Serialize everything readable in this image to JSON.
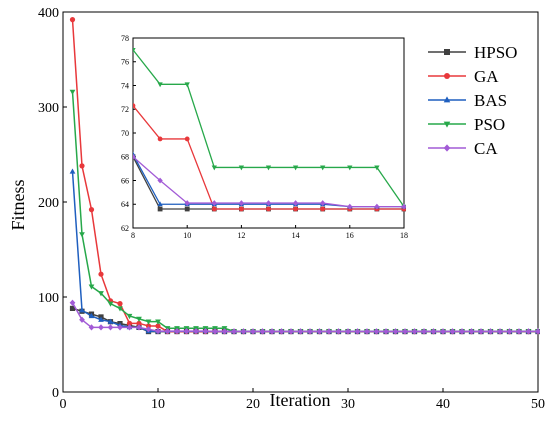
{
  "chart_data": {
    "type": "line",
    "title": "",
    "xlabel": "Iteration",
    "ylabel": "Fitness",
    "xlim": [
      0,
      50
    ],
    "ylim": [
      0,
      400
    ],
    "xticks": [
      0,
      10,
      20,
      30,
      40,
      50
    ],
    "yticks": [
      0,
      100,
      200,
      300,
      400
    ],
    "grid": false,
    "legend_position": "top-right",
    "series": [
      {
        "name": "HPSO",
        "color": "#404040",
        "marker": "square",
        "x": [
          1,
          2,
          3,
          4,
          5,
          6,
          7,
          8,
          9,
          10,
          11,
          12,
          13,
          14,
          15,
          16,
          17,
          18,
          19,
          20,
          21,
          22,
          23,
          24,
          25,
          26,
          27,
          28,
          29,
          30,
          31,
          32,
          33,
          34,
          35,
          36,
          37,
          38,
          39,
          40,
          41,
          42,
          43,
          44,
          45,
          46,
          47,
          48,
          49,
          50
        ],
        "y": [
          88,
          85,
          82,
          79,
          74,
          72,
          70,
          68,
          63.6,
          63.6,
          63.6,
          63.6,
          63.6,
          63.6,
          63.6,
          63.6,
          63.6,
          63.6,
          63.6,
          63.6,
          63.6,
          63.6,
          63.6,
          63.6,
          63.6,
          63.6,
          63.6,
          63.6,
          63.6,
          63.6,
          63.6,
          63.6,
          63.6,
          63.6,
          63.6,
          63.6,
          63.6,
          63.6,
          63.6,
          63.6,
          63.6,
          63.6,
          63.6,
          63.6,
          63.6,
          63.6,
          63.6,
          63.6,
          63.6,
          63.6
        ]
      },
      {
        "name": "GA",
        "color": "#e8383b",
        "marker": "circle",
        "x": [
          1,
          2,
          3,
          4,
          5,
          6,
          7,
          8,
          9,
          10,
          11,
          12,
          13,
          14,
          15,
          16,
          17,
          18,
          19,
          20,
          21,
          22,
          23,
          24,
          25,
          26,
          27,
          28,
          29,
          30,
          31,
          32,
          33,
          34,
          35,
          36,
          37,
          38,
          39,
          40,
          41,
          42,
          43,
          44,
          45,
          46,
          47,
          48,
          49,
          50
        ],
        "y": [
          392,
          238,
          192,
          124,
          96,
          93,
          72.3,
          72.3,
          69.5,
          69.5,
          63.6,
          63.6,
          63.6,
          63.6,
          63.6,
          63.6,
          63.6,
          63.6,
          63.6,
          63.6,
          63.6,
          63.6,
          63.6,
          63.6,
          63.6,
          63.6,
          63.6,
          63.6,
          63.6,
          63.6,
          63.6,
          63.6,
          63.6,
          63.6,
          63.6,
          63.6,
          63.6,
          63.6,
          63.6,
          63.6,
          63.6,
          63.6,
          63.6,
          63.6,
          63.6,
          63.6,
          63.6,
          63.6,
          63.6,
          63.6
        ]
      },
      {
        "name": "BAS",
        "color": "#1f5fbf",
        "marker": "triangle-up",
        "x": [
          1,
          2,
          3,
          4,
          5,
          6,
          7,
          8,
          9,
          10,
          11,
          12,
          13,
          14,
          15,
          16,
          17,
          18,
          19,
          20,
          21,
          22,
          23,
          24,
          25,
          26,
          27,
          28,
          29,
          30,
          31,
          32,
          33,
          34,
          35,
          36,
          37,
          38,
          39,
          40,
          41,
          42,
          43,
          44,
          45,
          46,
          47,
          48,
          49,
          50
        ],
        "y": [
          232,
          86,
          80,
          76,
          74,
          70,
          68.2,
          68.2,
          64,
          64,
          64,
          64,
          64,
          64,
          64,
          63.8,
          63.8,
          63.8,
          63.8,
          63.8,
          63.8,
          63.8,
          63.8,
          63.8,
          63.8,
          63.8,
          63.8,
          63.8,
          63.8,
          63.8,
          63.8,
          63.8,
          63.8,
          63.8,
          63.8,
          63.8,
          63.8,
          63.8,
          63.8,
          63.8,
          63.8,
          63.8,
          63.8,
          63.8,
          63.8,
          63.8,
          63.8,
          63.8,
          63.8,
          63.8
        ]
      },
      {
        "name": "PSO",
        "color": "#27a84a",
        "marker": "triangle-down",
        "x": [
          1,
          2,
          3,
          4,
          5,
          6,
          7,
          8,
          9,
          10,
          11,
          12,
          13,
          14,
          15,
          16,
          17,
          18,
          19,
          20,
          21,
          22,
          23,
          24,
          25,
          26,
          27,
          28,
          29,
          30,
          31,
          32,
          33,
          34,
          35,
          36,
          37,
          38,
          39,
          40,
          41,
          42,
          43,
          44,
          45,
          46,
          47,
          48,
          49,
          50
        ],
        "y": [
          316,
          166,
          111,
          104,
          93,
          88,
          80,
          77,
          74.1,
          74.1,
          67.1,
          67.1,
          67.1,
          67.1,
          67.1,
          67.1,
          67.1,
          63.8,
          63.8,
          63.8,
          63.8,
          63.8,
          63.8,
          63.8,
          63.8,
          63.8,
          63.8,
          63.8,
          63.8,
          63.8,
          63.8,
          63.8,
          63.8,
          63.8,
          63.8,
          63.8,
          63.8,
          63.8,
          63.8,
          63.8,
          63.8,
          63.8,
          63.8,
          63.8,
          63.8,
          63.8,
          63.8,
          63.8,
          63.8,
          63.8
        ]
      },
      {
        "name": "CA",
        "color": "#a25bd6",
        "marker": "diamond",
        "x": [
          1,
          2,
          3,
          4,
          5,
          6,
          7,
          8,
          9,
          10,
          11,
          12,
          13,
          14,
          15,
          16,
          17,
          18,
          19,
          20,
          21,
          22,
          23,
          24,
          25,
          26,
          27,
          28,
          29,
          30,
          31,
          32,
          33,
          34,
          35,
          36,
          37,
          38,
          39,
          40,
          41,
          42,
          43,
          44,
          45,
          46,
          47,
          48,
          49,
          50
        ],
        "y": [
          94,
          76,
          68,
          68,
          68,
          68,
          68,
          68,
          66,
          64.1,
          64.1,
          64.1,
          64.1,
          64.1,
          64.1,
          63.8,
          63.8,
          63.8,
          63.8,
          63.8,
          63.8,
          63.8,
          63.8,
          63.8,
          63.8,
          63.8,
          63.8,
          63.8,
          63.8,
          63.8,
          63.8,
          63.8,
          63.8,
          63.8,
          63.8,
          63.8,
          63.8,
          63.8,
          63.8,
          63.8,
          63.8,
          63.8,
          63.8,
          63.8,
          63.8,
          63.8,
          63.8,
          63.8,
          63.8,
          63.8
        ]
      }
    ],
    "inset": {
      "xlim": [
        8,
        18
      ],
      "ylim": [
        62,
        78
      ],
      "xticks": [
        8,
        10,
        12,
        14,
        16,
        18
      ],
      "yticks": [
        62,
        64,
        66,
        68,
        70,
        72,
        74,
        76,
        78
      ]
    }
  }
}
